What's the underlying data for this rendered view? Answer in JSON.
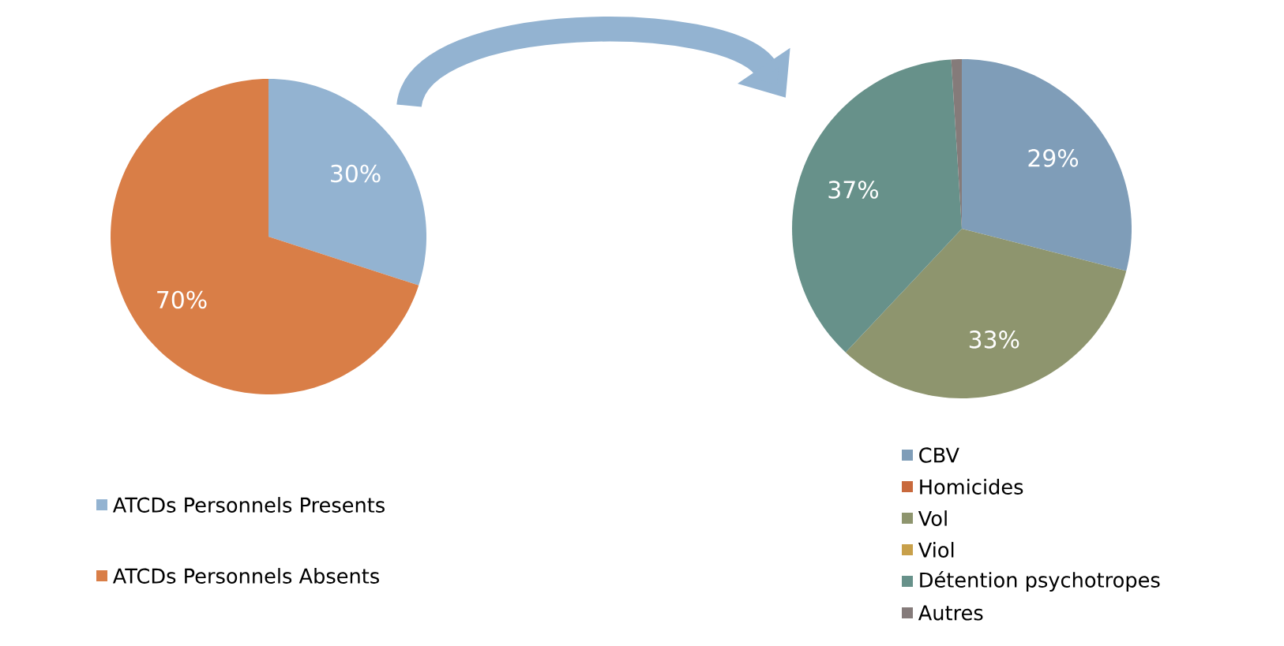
{
  "chart_data": [
    {
      "type": "pie",
      "categories": [
        "ATCDs Personnels Presents",
        "ATCDs Personnels Absents"
      ],
      "values": [
        30,
        70
      ],
      "colors": [
        "#93b3d1",
        "#d97e47"
      ],
      "value_labels": [
        "30%",
        "70%"
      ],
      "legend": "bottom"
    },
    {
      "type": "pie",
      "categories": [
        "CBV",
        "Homicides",
        "Vol",
        "Viol",
        "Détention psychotropes",
        "Autres"
      ],
      "values": [
        29,
        0,
        33,
        0,
        37,
        1
      ],
      "colors": [
        "#7f9db8",
        "#c8693c",
        "#8e956e",
        "#c8a04a",
        "#67918a",
        "#857b7a"
      ],
      "value_labels": [
        "29%",
        null,
        "33%",
        null,
        "37%",
        null
      ],
      "legend": "bottom"
    }
  ]
}
